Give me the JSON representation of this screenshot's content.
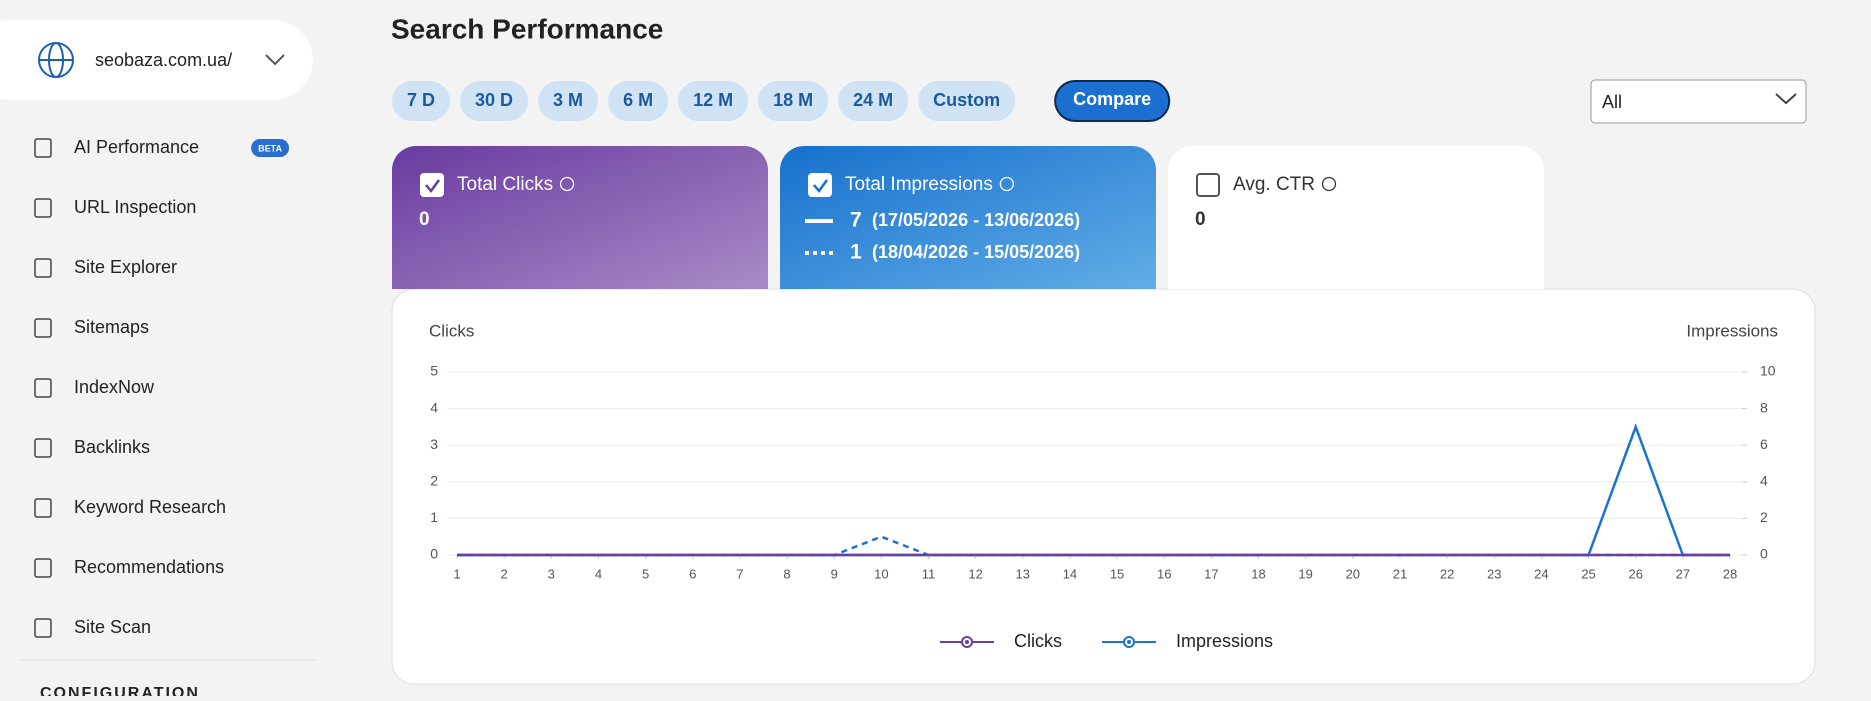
{
  "sidebar": {
    "site": "seobaza.com.ua/",
    "nav": [
      {
        "label": "AI Performance",
        "badge": "BETA"
      },
      {
        "label": "URL Inspection"
      },
      {
        "label": "Site Explorer"
      },
      {
        "label": "Sitemaps"
      },
      {
        "label": "IndexNow"
      },
      {
        "label": "Backlinks"
      },
      {
        "label": "Keyword Research"
      },
      {
        "label": "Recommendations"
      },
      {
        "label": "Site Scan"
      }
    ],
    "section": "CONFIGURATION"
  },
  "header": {
    "title": "Search Performance"
  },
  "ranges": [
    "7 D",
    "30 D",
    "3 M",
    "6 M",
    "12 M",
    "18 M",
    "24 M",
    "Custom"
  ],
  "compare": "Compare",
  "filter": "All",
  "cards": [
    {
      "label": "Total Clicks",
      "value": 0,
      "checked": true
    },
    {
      "label": "Total Impressions",
      "checked": true,
      "current": {
        "value": 7,
        "range": "(17/05/2026 - 13/06/2026)"
      },
      "previous": {
        "value": 1,
        "range": "(18/04/2026 - 15/05/2026)"
      }
    },
    {
      "label": "Avg. CTR",
      "value": 0,
      "checked": false
    }
  ],
  "chart_data": {
    "type": "line",
    "ylabel": "Clicks",
    "y2label": "Impressions",
    "x": [
      1,
      2,
      3,
      4,
      5,
      6,
      7,
      8,
      9,
      10,
      11,
      12,
      13,
      14,
      15,
      16,
      17,
      18,
      19,
      20,
      21,
      22,
      23,
      24,
      25,
      26,
      27,
      28
    ],
    "xlim": [
      1,
      28
    ],
    "xticks": [
      1,
      2,
      3,
      4,
      5,
      6,
      7,
      8,
      9,
      10,
      11,
      12,
      13,
      14,
      15,
      16,
      17,
      18,
      19,
      20,
      21,
      22,
      23,
      24,
      25,
      26,
      27,
      28
    ],
    "ylim": [
      0,
      5
    ],
    "yticks": [
      0,
      1,
      2,
      3,
      4,
      5
    ],
    "y2lim": [
      0,
      10
    ],
    "y2ticks": [
      0,
      2,
      4,
      6,
      8,
      10
    ],
    "grid": true,
    "series": [
      {
        "values": [
          0,
          0,
          0,
          0,
          0,
          0,
          0,
          0,
          0,
          1,
          0,
          0,
          0,
          0,
          0,
          0,
          0,
          0,
          0,
          0,
          0,
          0,
          0,
          0,
          0,
          0,
          0,
          0
        ],
        "color": "#1a73d0",
        "axis": "y2",
        "dashed": true
      },
      {
        "name": "Impressions",
        "values": [
          0,
          0,
          0,
          0,
          0,
          0,
          0,
          0,
          0,
          0,
          0,
          0,
          0,
          0,
          0,
          0,
          0,
          0,
          0,
          0,
          0,
          0,
          0,
          0,
          0,
          7,
          0,
          0
        ],
        "color": "#1a73d0",
        "axis": "y2"
      },
      {
        "name": "Clicks",
        "values": [
          0,
          0,
          0,
          0,
          0,
          0,
          0,
          0,
          0,
          0,
          0,
          0,
          0,
          0,
          0,
          0,
          0,
          0,
          0,
          0,
          0,
          0,
          0,
          0,
          0,
          0,
          0,
          0
        ],
        "color": "#6b3fa0"
      }
    ]
  }
}
